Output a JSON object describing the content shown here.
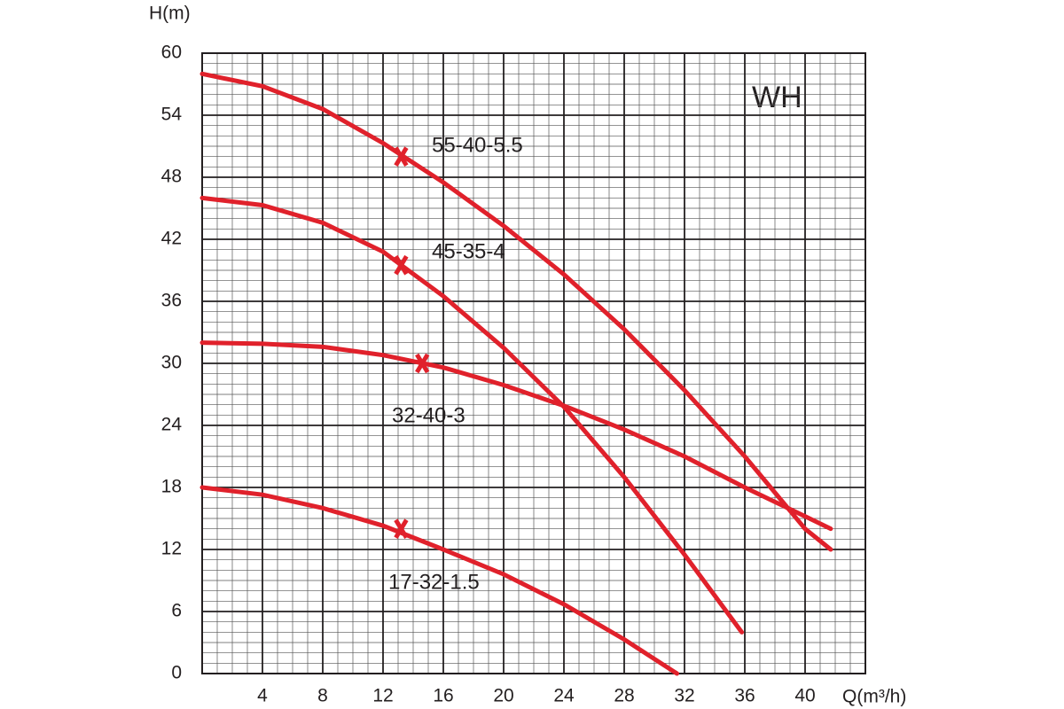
{
  "chart_data": {
    "type": "line",
    "x_label": "Q(m³/h)",
    "y_label": "H(m)",
    "annotation": "WH",
    "xlim": [
      0,
      44
    ],
    "ylim": [
      0,
      60
    ],
    "xticks": [
      4,
      8,
      12,
      16,
      20,
      24,
      28,
      32,
      36,
      40
    ],
    "yticks": [
      0,
      6,
      12,
      18,
      24,
      30,
      36,
      42,
      48,
      54,
      60
    ],
    "grid": true,
    "minor_grid": true,
    "color": "#e0212b",
    "series": [
      {
        "name": "55-40-5.5",
        "x": [
          0,
          4,
          8,
          12,
          16,
          20,
          24,
          28,
          32,
          36,
          40,
          41.7
        ],
        "values": [
          58,
          56.8,
          54.6,
          51.3,
          47.5,
          43.3,
          38.6,
          33.3,
          27.4,
          21,
          14,
          12
        ],
        "marker": {
          "x": 13.2,
          "y": 50
        }
      },
      {
        "name": "45-35-4",
        "x": [
          0,
          4,
          8,
          12,
          16,
          20,
          24,
          28,
          32,
          35.8
        ],
        "values": [
          46,
          45.3,
          43.6,
          40.8,
          36.5,
          31.5,
          25.8,
          19,
          11.5,
          4
        ],
        "marker": {
          "x": 13.2,
          "y": 39.5
        }
      },
      {
        "name": "32-40-3",
        "x": [
          0,
          4,
          8,
          12,
          16,
          20,
          24,
          28,
          32,
          36,
          40,
          41.7
        ],
        "values": [
          32,
          31.9,
          31.6,
          30.8,
          29.6,
          27.9,
          25.9,
          23.6,
          21,
          18,
          15.2,
          14
        ],
        "marker": {
          "x": 14.6,
          "y": 30
        }
      },
      {
        "name": "17-32-1.5",
        "x": [
          0,
          4,
          8,
          12,
          16,
          20,
          24,
          28,
          31.5
        ],
        "values": [
          18,
          17.3,
          16,
          14.3,
          12,
          9.6,
          6.7,
          3.3,
          0
        ],
        "marker": {
          "x": 13.2,
          "y": 14
        }
      }
    ]
  }
}
